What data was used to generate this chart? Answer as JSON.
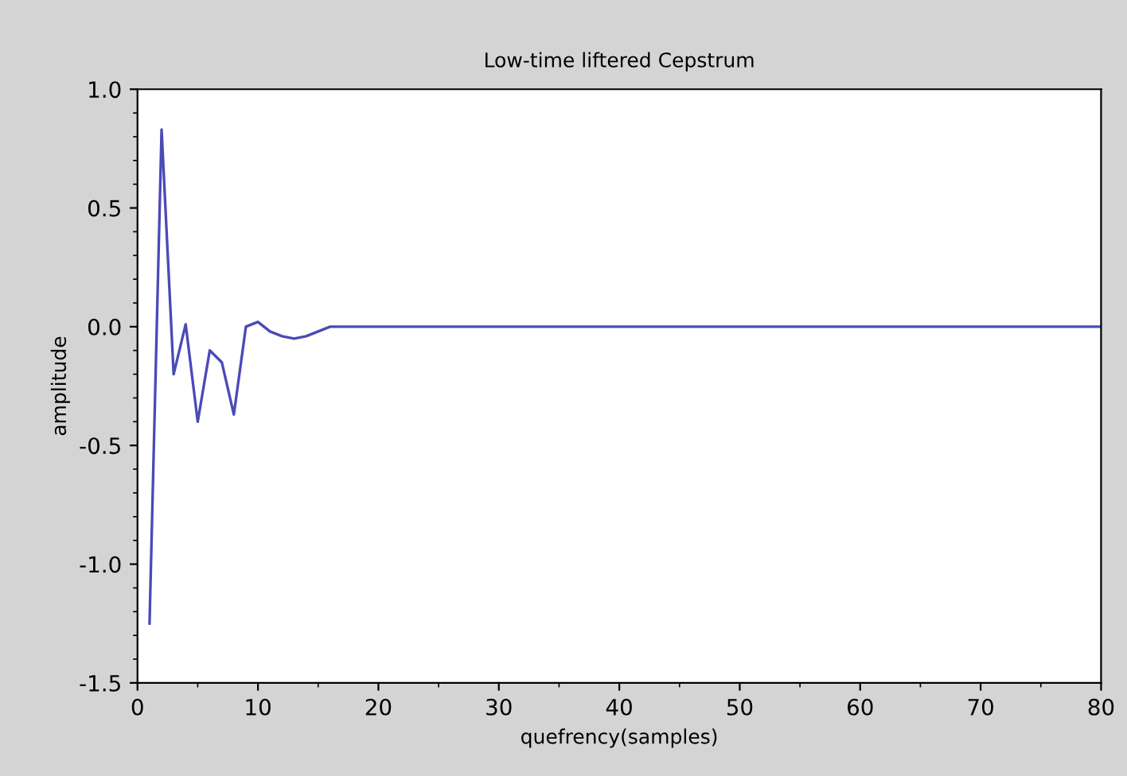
{
  "chart_data": {
    "type": "line",
    "title": "Low-time liftered Cepstrum",
    "xlabel": "quefrency(samples)",
    "ylabel": "amplitude",
    "x": [
      1,
      2,
      3,
      4,
      5,
      6,
      7,
      8,
      9,
      10,
      11,
      12,
      13,
      14,
      15,
      16,
      80
    ],
    "series": [
      {
        "color": "#4a4ab8",
        "values": [
          -1.25,
          0.83,
          -0.2,
          0.01,
          -0.4,
          -0.1,
          -0.15,
          -0.37,
          0.0,
          0.02,
          -0.02,
          -0.04,
          -0.05,
          -0.04,
          -0.02,
          0.0,
          0.0
        ]
      }
    ],
    "xlim": [
      0,
      80
    ],
    "xticks": [
      0,
      10,
      20,
      30,
      40,
      50,
      60,
      70,
      80
    ],
    "ylim": [
      -1.5,
      1.0
    ],
    "yticks": [
      {
        "value": -1.5,
        "label": "-1.5"
      },
      {
        "value": -1.0,
        "label": "-1.0"
      },
      {
        "value": -0.5,
        "label": "-0.5"
      },
      {
        "value": 0.0,
        "label": "0.0"
      },
      {
        "value": 0.5,
        "label": "0.5"
      },
      {
        "value": 1.0,
        "label": "1.0"
      }
    ],
    "grid": false,
    "legend": false,
    "marker": "none",
    "line_style": "solid"
  }
}
